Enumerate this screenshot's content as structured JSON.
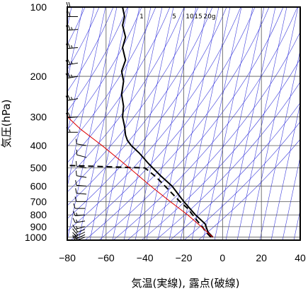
{
  "chart_data": {
    "type": "line",
    "title": "",
    "xlabel": "気温(実線), 露点(破線)",
    "ylabel": "気圧(hPa)",
    "xlim": [
      -80,
      40
    ],
    "ylim": [
      1030,
      100
    ],
    "y_scale": "log",
    "grid": true,
    "x_ticks": [
      "−80",
      "−60",
      "−40",
      "−20",
      "0",
      "20",
      "40"
    ],
    "x_tick_values": [
      -80,
      -60,
      -40,
      -20,
      0,
      20,
      40
    ],
    "y_ticks": [
      "100",
      "200",
      "300",
      "400",
      "500",
      "600",
      "700",
      "800",
      "900",
      "1000"
    ],
    "y_tick_values": [
      100,
      200,
      300,
      400,
      500,
      600,
      700,
      800,
      900,
      1000
    ],
    "mixing_ratio_labels": [
      "1",
      "5",
      "10",
      "15",
      "20g"
    ],
    "colors": {
      "temperature": "#000000",
      "dewpoint": "#000000",
      "parcel": "#e00000",
      "background_lines": "#3a3adc",
      "grid": "#555555"
    },
    "series": [
      {
        "role": "temperature",
        "points": [
          [
            -5.0,
            1000
          ],
          [
            -7.5,
            950
          ],
          [
            -8.5,
            900
          ],
          [
            -9.0,
            875
          ],
          [
            -14.0,
            800
          ],
          [
            -20.0,
            700
          ],
          [
            -26.0,
            600
          ],
          [
            -32.0,
            540
          ],
          [
            -38.0,
            480
          ],
          [
            -43.0,
            430
          ],
          [
            -47.0,
            400
          ],
          [
            -49.0,
            380
          ],
          [
            -50.0,
            360
          ],
          [
            -50.5,
            330
          ],
          [
            -51.5,
            300
          ],
          [
            -51.0,
            270
          ],
          [
            -52.0,
            240
          ],
          [
            -51.0,
            210
          ],
          [
            -52.0,
            190
          ],
          [
            -50.0,
            170
          ],
          [
            -51.5,
            150
          ],
          [
            -50.0,
            135
          ],
          [
            -51.5,
            120
          ],
          [
            -50.5,
            110
          ],
          [
            -51.5,
            100
          ]
        ]
      },
      {
        "role": "dewpoint",
        "points": [
          [
            -6.0,
            1000
          ],
          [
            -8.5,
            950
          ],
          [
            -10.5,
            900
          ],
          [
            -13.0,
            850
          ],
          [
            -18.0,
            750
          ],
          [
            -22.0,
            700
          ],
          [
            -28.0,
            620
          ],
          [
            -34.0,
            550
          ],
          [
            -40.0,
            500
          ],
          [
            -80.0,
            488
          ]
        ]
      },
      {
        "role": "parcel",
        "points": [
          [
            -5.0,
            1000
          ],
          [
            -11.0,
            900
          ],
          [
            -18.0,
            800
          ],
          [
            -27.0,
            700
          ],
          [
            -37.0,
            600
          ],
          [
            -48.0,
            500
          ],
          [
            -62.0,
            400
          ],
          [
            -73.0,
            340
          ],
          [
            -79.0,
            305
          ],
          [
            -80.0,
            295
          ]
        ]
      }
    ],
    "wind_barbs": [
      [
        1000,
        250,
        20
      ],
      [
        975,
        245,
        20
      ],
      [
        950,
        245,
        15
      ],
      [
        925,
        250,
        15
      ],
      [
        900,
        255,
        15
      ],
      [
        850,
        260,
        15
      ],
      [
        800,
        265,
        15
      ],
      [
        750,
        270,
        10
      ],
      [
        700,
        270,
        10
      ],
      [
        650,
        275,
        10
      ],
      [
        600,
        275,
        10
      ],
      [
        550,
        280,
        10
      ],
      [
        500,
        280,
        10
      ],
      [
        450,
        285,
        10
      ],
      [
        400,
        280,
        10
      ],
      [
        350,
        270,
        15
      ],
      [
        300,
        265,
        20
      ],
      [
        250,
        260,
        25
      ],
      [
        200,
        260,
        25
      ],
      [
        175,
        260,
        25
      ],
      [
        150,
        265,
        25
      ],
      [
        125,
        265,
        25
      ],
      [
        110,
        270,
        20
      ],
      [
        100,
        270,
        20
      ]
    ]
  }
}
